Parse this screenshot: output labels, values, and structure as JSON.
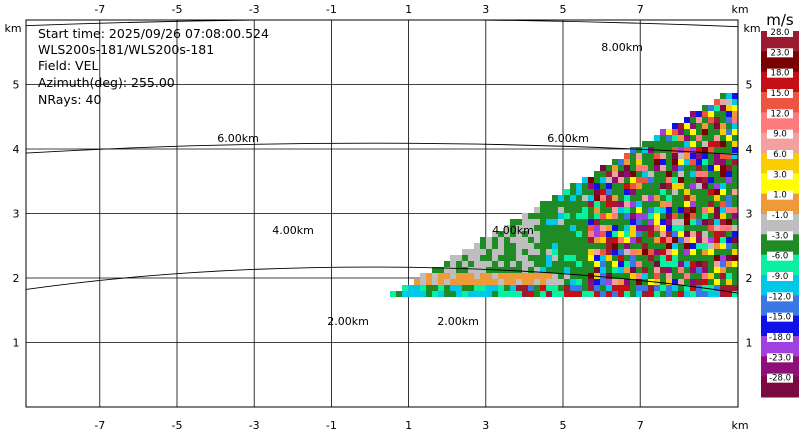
{
  "info": {
    "start_time": "Start time: 2025/09/26 07:08:00.524",
    "instrument": "WLS200s-181/WLS200s-181",
    "field": "Field: VEL",
    "azimuth": "Azimuth(deg): 255.00",
    "nrays": "NRays: 40"
  },
  "chart_data": {
    "type": "heatmap",
    "subtype": "rhi-radar-sector",
    "xlim": [
      -9,
      9
    ],
    "ylim": [
      0,
      6
    ],
    "x_ticks": [
      -7,
      -5,
      -3,
      -1,
      1,
      3,
      5,
      7
    ],
    "y_ticks": [
      1,
      2,
      3,
      4,
      5
    ],
    "axis_unit": "km",
    "grid": true,
    "range_rings_km": [
      2,
      4,
      6,
      8
    ],
    "range_ring_labels": [
      "2.00km",
      "2.00km",
      "4.00km",
      "4.00km",
      "6.00km",
      "6.00km",
      "8.00km"
    ],
    "sector": {
      "elevation_deg": [
        0,
        30
      ],
      "range_km": [
        0.5,
        8.8
      ],
      "origin_x_km": 0,
      "origin_y_km": 1.8,
      "nrays": 40
    },
    "colorbar": {
      "unit": "m/s",
      "labels": [
        "28.0",
        "23.0",
        "18.0",
        "15.0",
        "12.0",
        "9.0",
        "6.0",
        "3.0",
        "1.0",
        "-1.0",
        "-3.0",
        "-6.0",
        "-9.0",
        "-12.0",
        "-15.0",
        "-18.0",
        "-23.0",
        "-28.0"
      ],
      "colors": [
        "#9b1b30",
        "#7a0000",
        "#c40f15",
        "#ee5540",
        "#ff7a7a",
        "#f3a0a0",
        "#f9ce00",
        "#ffff00",
        "#ef9a3a",
        "#bebebe",
        "#1f8b25",
        "#08f0a0",
        "#00c8e8",
        "#3a78e6",
        "#1010e8",
        "#a040e0",
        "#8e0e78",
        "#7a0a40"
      ]
    }
  }
}
